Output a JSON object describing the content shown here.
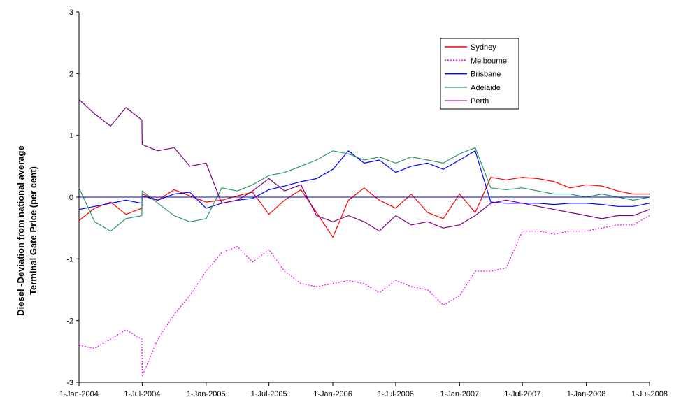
{
  "chart_data": {
    "type": "line",
    "ylabel": [
      "Diesel -Deviation from national average",
      "Terminal Gate Price (per cent)"
    ],
    "ylim": [
      -3,
      3
    ],
    "y_ticks": [
      "3",
      "2",
      "1",
      "0",
      "-1",
      "-2",
      "-3"
    ],
    "x_range": [
      "2004-01-01",
      "2008-07-01"
    ],
    "x_ticks": [
      "1-Jan-2004",
      "1-Jul-2004",
      "1-Jan-2005",
      "1-Jul-2005",
      "1-Jan-2006",
      "1-Jul-2006",
      "1-Jan-2007",
      "1-Jul-2007",
      "1-Jan-2008",
      "1-Jul-2008"
    ],
    "grid": false,
    "legend_position": "top-right",
    "reference_line": 0,
    "series": [
      {
        "name": "Sydney",
        "color": "#ff0000",
        "dash": "solid",
        "points": [
          [
            "2004-01-01",
            -0.38
          ],
          [
            "2004-02-15",
            -0.18
          ],
          [
            "2004-04-01",
            -0.08
          ],
          [
            "2004-05-15",
            -0.28
          ],
          [
            "2004-06-30",
            -0.18
          ],
          [
            "2004-07-01",
            0.05
          ],
          [
            "2004-08-15",
            -0.05
          ],
          [
            "2004-10-01",
            0.12
          ],
          [
            "2004-11-15",
            0.02
          ],
          [
            "2005-01-01",
            -0.08
          ],
          [
            "2005-02-15",
            -0.05
          ],
          [
            "2005-04-01",
            0.02
          ],
          [
            "2005-05-15",
            0.08
          ],
          [
            "2005-07-01",
            -0.28
          ],
          [
            "2005-08-15",
            -0.05
          ],
          [
            "2005-10-01",
            0.12
          ],
          [
            "2005-11-15",
            -0.25
          ],
          [
            "2006-01-01",
            -0.65
          ],
          [
            "2006-02-15",
            -0.05
          ],
          [
            "2006-04-01",
            0.15
          ],
          [
            "2006-05-15",
            -0.05
          ],
          [
            "2006-07-01",
            -0.18
          ],
          [
            "2006-08-15",
            0.05
          ],
          [
            "2006-10-01",
            -0.25
          ],
          [
            "2006-11-15",
            -0.35
          ],
          [
            "2007-01-01",
            0.05
          ],
          [
            "2007-02-15",
            -0.25
          ],
          [
            "2007-04-01",
            0.32
          ],
          [
            "2007-05-15",
            0.28
          ],
          [
            "2007-07-01",
            0.32
          ],
          [
            "2007-08-15",
            0.3
          ],
          [
            "2007-10-01",
            0.25
          ],
          [
            "2007-11-15",
            0.15
          ],
          [
            "2008-01-01",
            0.2
          ],
          [
            "2008-02-15",
            0.18
          ],
          [
            "2008-04-01",
            0.1
          ],
          [
            "2008-05-15",
            0.05
          ],
          [
            "2008-07-01",
            0.05
          ]
        ]
      },
      {
        "name": "Melbourne",
        "color": "#ff00ff",
        "dash": "dotted",
        "points": [
          [
            "2004-01-01",
            -2.4
          ],
          [
            "2004-02-15",
            -2.45
          ],
          [
            "2004-04-01",
            -2.3
          ],
          [
            "2004-05-15",
            -2.15
          ],
          [
            "2004-06-30",
            -2.3
          ],
          [
            "2004-07-01",
            -2.9
          ],
          [
            "2004-08-15",
            -2.3
          ],
          [
            "2004-10-01",
            -1.9
          ],
          [
            "2004-11-15",
            -1.6
          ],
          [
            "2005-01-01",
            -1.2
          ],
          [
            "2005-02-15",
            -0.9
          ],
          [
            "2005-04-01",
            -0.8
          ],
          [
            "2005-05-15",
            -1.05
          ],
          [
            "2005-07-01",
            -0.85
          ],
          [
            "2005-08-15",
            -1.2
          ],
          [
            "2005-10-01",
            -1.4
          ],
          [
            "2005-11-15",
            -1.45
          ],
          [
            "2006-01-01",
            -1.4
          ],
          [
            "2006-02-15",
            -1.35
          ],
          [
            "2006-04-01",
            -1.4
          ],
          [
            "2006-05-15",
            -1.55
          ],
          [
            "2006-07-01",
            -1.35
          ],
          [
            "2006-08-15",
            -1.45
          ],
          [
            "2006-10-01",
            -1.5
          ],
          [
            "2006-11-15",
            -1.75
          ],
          [
            "2007-01-01",
            -1.6
          ],
          [
            "2007-02-15",
            -1.2
          ],
          [
            "2007-04-01",
            -1.2
          ],
          [
            "2007-05-15",
            -1.15
          ],
          [
            "2007-07-01",
            -0.55
          ],
          [
            "2007-08-15",
            -0.55
          ],
          [
            "2007-10-01",
            -0.6
          ],
          [
            "2007-11-15",
            -0.55
          ],
          [
            "2008-01-01",
            -0.55
          ],
          [
            "2008-02-15",
            -0.5
          ],
          [
            "2008-04-01",
            -0.45
          ],
          [
            "2008-05-15",
            -0.45
          ],
          [
            "2008-07-01",
            -0.3
          ]
        ]
      },
      {
        "name": "Brisbane",
        "color": "#0000ff",
        "dash": "solid",
        "points": [
          [
            "2004-01-01",
            -0.2
          ],
          [
            "2004-02-15",
            -0.15
          ],
          [
            "2004-04-01",
            -0.1
          ],
          [
            "2004-05-15",
            -0.05
          ],
          [
            "2004-06-30",
            -0.1
          ],
          [
            "2004-07-01",
            0.02
          ],
          [
            "2004-08-15",
            -0.05
          ],
          [
            "2004-10-01",
            0.05
          ],
          [
            "2004-11-15",
            0.08
          ],
          [
            "2005-01-01",
            -0.18
          ],
          [
            "2005-02-15",
            -0.1
          ],
          [
            "2005-04-01",
            -0.05
          ],
          [
            "2005-05-15",
            -0.02
          ],
          [
            "2005-07-01",
            0.12
          ],
          [
            "2005-08-15",
            0.18
          ],
          [
            "2005-10-01",
            0.25
          ],
          [
            "2005-11-15",
            0.3
          ],
          [
            "2006-01-01",
            0.45
          ],
          [
            "2006-02-15",
            0.75
          ],
          [
            "2006-04-01",
            0.55
          ],
          [
            "2006-05-15",
            0.6
          ],
          [
            "2006-07-01",
            0.4
          ],
          [
            "2006-08-15",
            0.5
          ],
          [
            "2006-10-01",
            0.55
          ],
          [
            "2006-11-15",
            0.45
          ],
          [
            "2007-01-01",
            0.6
          ],
          [
            "2007-02-15",
            0.75
          ],
          [
            "2007-04-01",
            -0.08
          ],
          [
            "2007-05-15",
            -0.1
          ],
          [
            "2007-07-01",
            -0.1
          ],
          [
            "2007-08-15",
            -0.1
          ],
          [
            "2007-10-01",
            -0.12
          ],
          [
            "2007-11-15",
            -0.1
          ],
          [
            "2008-01-01",
            -0.1
          ],
          [
            "2008-02-15",
            -0.12
          ],
          [
            "2008-04-01",
            -0.15
          ],
          [
            "2008-05-15",
            -0.15
          ],
          [
            "2008-07-01",
            -0.1
          ]
        ]
      },
      {
        "name": "Adelaide",
        "color": "#339966",
        "dash": "solid",
        "points": [
          [
            "2004-01-01",
            0.15
          ],
          [
            "2004-02-15",
            -0.4
          ],
          [
            "2004-04-01",
            -0.55
          ],
          [
            "2004-05-15",
            -0.35
          ],
          [
            "2004-06-30",
            -0.3
          ],
          [
            "2004-07-01",
            0.1
          ],
          [
            "2004-08-15",
            -0.1
          ],
          [
            "2004-10-01",
            -0.3
          ],
          [
            "2004-11-15",
            -0.4
          ],
          [
            "2005-01-01",
            -0.35
          ],
          [
            "2005-02-15",
            0.15
          ],
          [
            "2005-04-01",
            0.1
          ],
          [
            "2005-05-15",
            0.2
          ],
          [
            "2005-07-01",
            0.35
          ],
          [
            "2005-08-15",
            0.4
          ],
          [
            "2005-10-01",
            0.5
          ],
          [
            "2005-11-15",
            0.6
          ],
          [
            "2006-01-01",
            0.75
          ],
          [
            "2006-02-15",
            0.7
          ],
          [
            "2006-04-01",
            0.6
          ],
          [
            "2006-05-15",
            0.65
          ],
          [
            "2006-07-01",
            0.55
          ],
          [
            "2006-08-15",
            0.65
          ],
          [
            "2006-10-01",
            0.6
          ],
          [
            "2006-11-15",
            0.55
          ],
          [
            "2007-01-01",
            0.7
          ],
          [
            "2007-02-15",
            0.8
          ],
          [
            "2007-04-01",
            0.15
          ],
          [
            "2007-05-15",
            0.12
          ],
          [
            "2007-07-01",
            0.15
          ],
          [
            "2007-08-15",
            0.1
          ],
          [
            "2007-10-01",
            0.05
          ],
          [
            "2007-11-15",
            0.05
          ],
          [
            "2008-01-01",
            0.0
          ],
          [
            "2008-02-15",
            0.05
          ],
          [
            "2008-04-01",
            0.0
          ],
          [
            "2008-05-15",
            -0.05
          ],
          [
            "2008-07-01",
            0.0
          ]
        ]
      },
      {
        "name": "Perth",
        "color": "#800080",
        "dash": "solid",
        "points": [
          [
            "2004-01-01",
            1.58
          ],
          [
            "2004-02-15",
            1.35
          ],
          [
            "2004-04-01",
            1.15
          ],
          [
            "2004-05-15",
            1.45
          ],
          [
            "2004-06-30",
            1.25
          ],
          [
            "2004-07-01",
            0.85
          ],
          [
            "2004-08-15",
            0.75
          ],
          [
            "2004-10-01",
            0.8
          ],
          [
            "2004-11-15",
            0.5
          ],
          [
            "2005-01-01",
            0.55
          ],
          [
            "2005-02-15",
            -0.1
          ],
          [
            "2005-04-01",
            -0.05
          ],
          [
            "2005-05-15",
            0.1
          ],
          [
            "2005-07-01",
            0.3
          ],
          [
            "2005-08-15",
            0.1
          ],
          [
            "2005-10-01",
            0.2
          ],
          [
            "2005-11-15",
            -0.3
          ],
          [
            "2006-01-01",
            -0.4
          ],
          [
            "2006-02-15",
            -0.3
          ],
          [
            "2006-04-01",
            -0.4
          ],
          [
            "2006-05-15",
            -0.55
          ],
          [
            "2006-07-01",
            -0.3
          ],
          [
            "2006-08-15",
            -0.45
          ],
          [
            "2006-10-01",
            -0.4
          ],
          [
            "2006-11-15",
            -0.5
          ],
          [
            "2007-01-01",
            -0.45
          ],
          [
            "2007-02-15",
            -0.3
          ],
          [
            "2007-04-01",
            -0.1
          ],
          [
            "2007-05-15",
            -0.05
          ],
          [
            "2007-07-01",
            -0.1
          ],
          [
            "2007-08-15",
            -0.15
          ],
          [
            "2007-10-01",
            -0.2
          ],
          [
            "2007-11-15",
            -0.25
          ],
          [
            "2008-01-01",
            -0.3
          ],
          [
            "2008-02-15",
            -0.35
          ],
          [
            "2008-04-01",
            -0.3
          ],
          [
            "2008-05-15",
            -0.3
          ],
          [
            "2008-07-01",
            -0.2
          ]
        ]
      }
    ]
  }
}
